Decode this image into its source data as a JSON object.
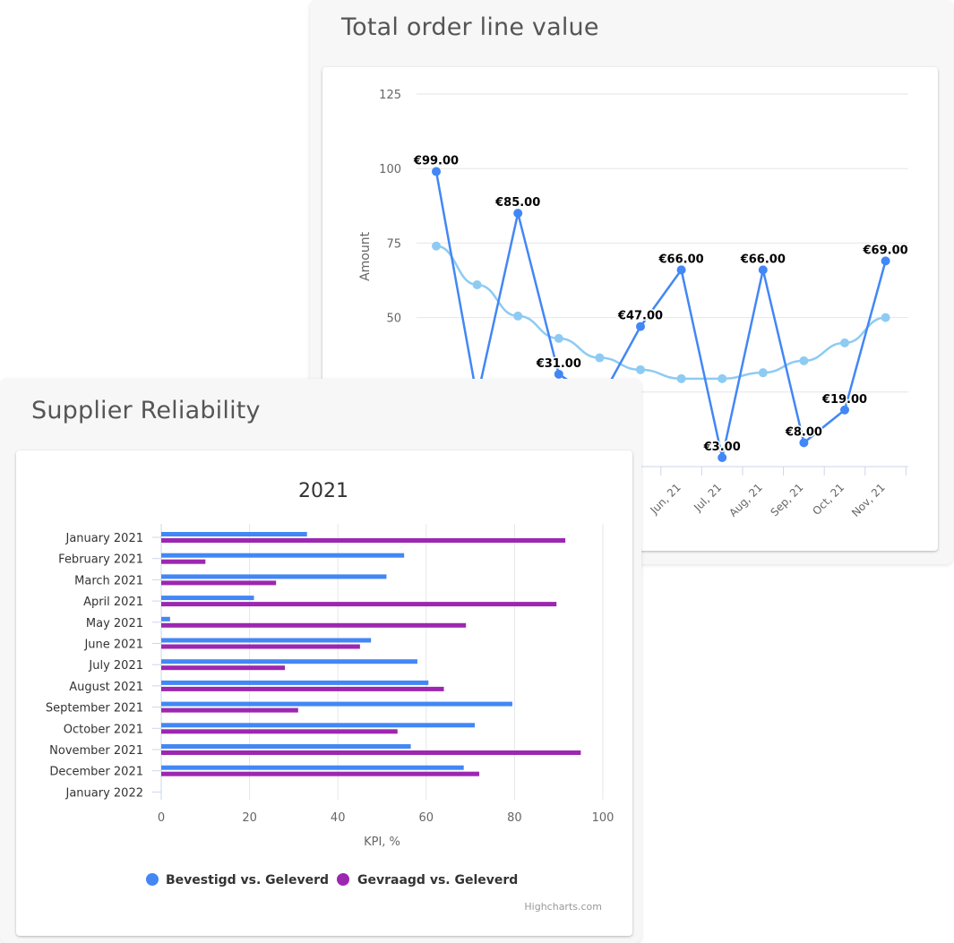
{
  "panels": {
    "line_title": "Total order line value",
    "bar_title": "Supplier Reliability"
  },
  "colors": {
    "blue": "#4287f5",
    "light_blue": "#8ecbf3",
    "purple": "#9c27b0",
    "grid": "#e6e6e6",
    "axis_text": "#666666"
  },
  "chart_data": [
    {
      "type": "line",
      "title": "Total order line value",
      "ylabel": "Amount",
      "ylim": [
        0,
        125
      ],
      "yticks": [
        "125",
        "100",
        "75",
        "50"
      ],
      "categories_visible": [
        "Jun, 21",
        "Jul, 21",
        "Aug, 21",
        "Sep, 21",
        "Oct, 21",
        "Nov, 21"
      ],
      "series": [
        {
          "points": [
            {
              "i": 0,
              "y": 99,
              "label": "€99.00"
            },
            {
              "i": 1,
              "y": 23
            },
            {
              "i": 2,
              "y": 85,
              "label": "€85.00"
            },
            {
              "i": 3,
              "y": 31,
              "label": "€31.00"
            },
            {
              "i": 4,
              "y": 22
            },
            {
              "i": 5,
              "y": 47,
              "label": "€47.00"
            },
            {
              "i": 6,
              "y": 66,
              "label": "€66.00"
            },
            {
              "i": 7,
              "y": 3,
              "label": "€3.00"
            },
            {
              "i": 8,
              "y": 66,
              "label": "€66.00"
            },
            {
              "i": 9,
              "y": 8,
              "label": "€8.00"
            },
            {
              "i": 10,
              "y": 19,
              "label": "€19.00"
            },
            {
              "i": 11,
              "y": 69,
              "label": "€69.00"
            }
          ]
        },
        {
          "values": [
            74,
            61,
            50.5,
            43,
            36.5,
            32.5,
            29.5,
            29.5,
            31.5,
            35.5,
            41.5,
            50
          ]
        }
      ],
      "legend": "none",
      "grid": true
    },
    {
      "type": "bar",
      "orientation": "horizontal",
      "title": "2021",
      "xlabel": "KPI, %",
      "xlim": [
        0,
        100
      ],
      "xticks": [
        "0",
        "20",
        "40",
        "60",
        "80",
        "100"
      ],
      "categories": [
        "January 2021",
        "February 2021",
        "March 2021",
        "April 2021",
        "May 2021",
        "June 2021",
        "July 2021",
        "August 2021",
        "September 2021",
        "October 2021",
        "November 2021",
        "December 2021",
        "January 2022"
      ],
      "series": [
        {
          "name": "Bevestigd vs. Geleverd",
          "values": [
            33,
            55,
            51,
            21,
            2,
            47.5,
            58,
            60.5,
            79.5,
            71,
            56.5,
            68.5,
            null
          ]
        },
        {
          "name": "Gevraagd vs. Geleverd",
          "values": [
            91.5,
            10,
            26,
            89.5,
            69,
            45,
            28,
            64,
            31,
            53.5,
            95,
            72,
            null
          ]
        }
      ],
      "legend": "bottom",
      "grid": true,
      "credit": "Highcharts.com"
    }
  ]
}
